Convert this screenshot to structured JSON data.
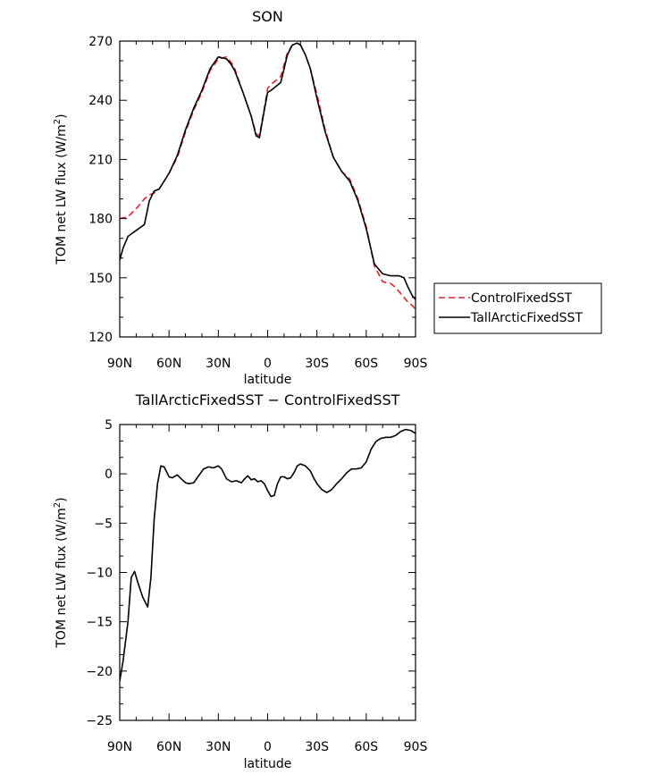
{
  "chart_data": [
    {
      "type": "line",
      "title": "SON",
      "xlabel": "latitude",
      "ylabel": "TOM net LW flux (W/m",
      "ylabel_sup": "2",
      "ylabel_close": ")",
      "x_ticks": [
        {
          "value": 90,
          "label": "90N"
        },
        {
          "value": 60,
          "label": "60N"
        },
        {
          "value": 30,
          "label": "30N"
        },
        {
          "value": 0,
          "label": "0"
        },
        {
          "value": -30,
          "label": "30S"
        },
        {
          "value": -60,
          "label": "60S"
        },
        {
          "value": -90,
          "label": "90S"
        }
      ],
      "xlim": [
        90,
        -90
      ],
      "ylim": [
        120,
        270
      ],
      "y_ticks": [
        120,
        150,
        180,
        210,
        240,
        270
      ],
      "legend_placement": "right",
      "series": [
        {
          "name": "ControlFixedSST",
          "color": "#e8202a",
          "dash": "dashed",
          "x": [
            90,
            85,
            80,
            75,
            72,
            69,
            66,
            60,
            55,
            50,
            45,
            40,
            35,
            30,
            25,
            22,
            20,
            15,
            10,
            7,
            5,
            2,
            0,
            -2,
            -5,
            -8,
            -10,
            -12,
            -15,
            -18,
            -20,
            -23,
            -26,
            -30,
            -35,
            -40,
            -45,
            -50,
            -55,
            -60,
            -65,
            -70,
            -75,
            -78,
            -80,
            -83,
            -85,
            -88,
            -90
          ],
          "y": [
            180,
            181,
            185,
            190,
            192,
            193,
            195,
            203,
            211,
            224,
            235,
            244,
            255,
            261,
            262,
            259,
            256,
            244,
            232,
            223,
            222,
            236,
            246,
            248,
            250,
            252,
            258,
            264,
            268,
            269,
            268,
            263,
            256,
            243,
            225,
            211,
            204,
            200,
            190,
            176,
            156,
            148,
            147,
            145,
            143,
            140,
            138,
            136,
            134
          ]
        },
        {
          "name": "TallArcticFixedSST",
          "color": "#000000",
          "dash": "solid",
          "x": [
            90,
            88,
            85,
            80,
            75,
            72,
            69,
            66,
            60,
            55,
            50,
            45,
            40,
            35,
            30,
            25,
            22,
            20,
            15,
            10,
            7,
            5,
            2,
            0,
            -2,
            -5,
            -8,
            -10,
            -12,
            -15,
            -18,
            -20,
            -23,
            -26,
            -30,
            -35,
            -40,
            -45,
            -50,
            -55,
            -60,
            -65,
            -70,
            -75,
            -78,
            -80,
            -83,
            -85,
            -88,
            -90
          ],
          "y": [
            159,
            165,
            171,
            174,
            177,
            189,
            194,
            195,
            203,
            212,
            225,
            236,
            245,
            256,
            262,
            261,
            258,
            255,
            244,
            232,
            222,
            221,
            235,
            244,
            245,
            247,
            249,
            256,
            263,
            268,
            269,
            268,
            263,
            256,
            241,
            224,
            211,
            204,
            199,
            189,
            175,
            157,
            152,
            151,
            151,
            151,
            150,
            146,
            141,
            139
          ]
        }
      ]
    },
    {
      "type": "line",
      "title": "TallArcticFixedSST − ControlFixedSST",
      "xlabel": "latitude",
      "ylabel": "TOM net LW flux (W/m",
      "ylabel_sup": "2",
      "ylabel_close": ")",
      "x_ticks": [
        {
          "value": 90,
          "label": "90N"
        },
        {
          "value": 60,
          "label": "60N"
        },
        {
          "value": 30,
          "label": "30N"
        },
        {
          "value": 0,
          "label": "0"
        },
        {
          "value": -30,
          "label": "30S"
        },
        {
          "value": -60,
          "label": "60S"
        },
        {
          "value": -90,
          "label": "90S"
        }
      ],
      "xlim": [
        90,
        -90
      ],
      "ylim": [
        -25,
        5
      ],
      "y_ticks": [
        {
          "value": -25,
          "label": "−25"
        },
        {
          "value": -20,
          "label": "−20"
        },
        {
          "value": -15,
          "label": "−15"
        },
        {
          "value": -10,
          "label": "−10"
        },
        {
          "value": -5,
          "label": "−5"
        },
        {
          "value": 0,
          "label": "0"
        },
        {
          "value": 5,
          "label": "5"
        }
      ],
      "series": [
        {
          "name": "",
          "color": "#000000",
          "dash": "solid",
          "x": [
            90,
            88,
            85,
            83,
            81,
            79,
            76,
            73,
            71,
            69,
            67,
            65,
            63,
            60,
            58,
            55,
            52,
            50,
            48,
            45,
            42,
            39,
            36,
            33,
            30,
            28,
            25,
            22,
            19,
            16,
            14,
            12,
            10,
            8,
            6,
            4,
            2,
            0,
            -2,
            -4,
            -6,
            -8,
            -10,
            -12,
            -14,
            -16,
            -18,
            -20,
            -23,
            -26,
            -28,
            -30,
            -33,
            -36,
            -39,
            -42,
            -45,
            -48,
            -51,
            -54,
            -57,
            -60,
            -63,
            -66,
            -69,
            -72,
            -75,
            -78,
            -81,
            -84,
            -87,
            -90
          ],
          "y": [
            -21,
            -19,
            -15,
            -10.5,
            -9.9,
            -11,
            -12.5,
            -13.5,
            -10.5,
            -4.5,
            -1,
            0.8,
            0.7,
            -0.3,
            -0.4,
            -0.1,
            -0.6,
            -0.9,
            -1.0,
            -0.9,
            -0.2,
            0.5,
            0.7,
            0.6,
            0.8,
            0.5,
            -0.5,
            -0.8,
            -0.7,
            -0.9,
            -0.5,
            -0.2,
            -0.6,
            -0.5,
            -0.8,
            -0.7,
            -1.0,
            -1.7,
            -2.3,
            -2.2,
            -1.0,
            -0.3,
            -0.3,
            -0.5,
            -0.4,
            0.1,
            0.8,
            1.0,
            0.8,
            0.3,
            -0.4,
            -1.0,
            -1.6,
            -1.9,
            -1.6,
            -1.0,
            -0.5,
            0.1,
            0.5,
            0.5,
            0.6,
            1.2,
            2.5,
            3.3,
            3.6,
            3.7,
            3.7,
            3.9,
            4.3,
            4.5,
            4.4,
            4.1
          ]
        }
      ]
    }
  ]
}
